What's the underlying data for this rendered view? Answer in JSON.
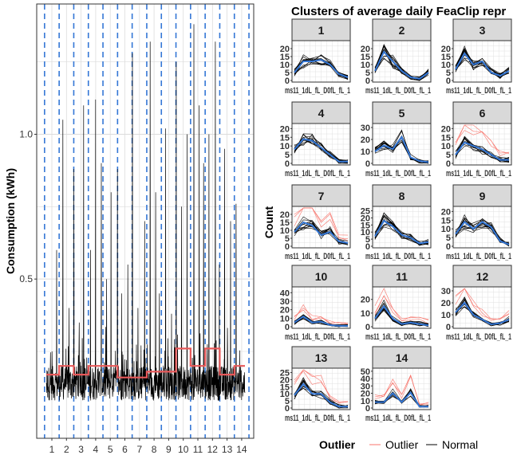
{
  "chart_data": [
    {
      "type": "line",
      "id": "consumption",
      "ylabel": "Consumption (kWh)",
      "y_ticks": [
        "0.5",
        "1.0"
      ],
      "y_tick_values": [
        0.5,
        1.0
      ],
      "ylim": [
        -0.05,
        1.45
      ],
      "x_categories": [
        "1",
        "2",
        "3",
        "4",
        "5",
        "6",
        "7",
        "8",
        "9",
        "10",
        "11",
        "12",
        "13",
        "14"
      ],
      "cluster_means": [
        0.17,
        0.2,
        0.17,
        0.2,
        0.2,
        0.16,
        0.16,
        0.18,
        0.18,
        0.26,
        0.2,
        0.26,
        0.17,
        0.2
      ],
      "spike_peaks": [
        0.25,
        0.6,
        1.05,
        0.4,
        0.88,
        0.35,
        1.1,
        0.6,
        1.12,
        0.9,
        0.5,
        0.8,
        0.88,
        0.45,
        0.55,
        1.28,
        0.4,
        0.7,
        1.32,
        0.8,
        0.45,
        1.02,
        0.38,
        1.25,
        0.75,
        1.0,
        1.38,
        1.1,
        0.9,
        1.0,
        1.32,
        0.55,
        0.95,
        0.7,
        0.76
      ],
      "series_colors": {
        "consumption": "#000000",
        "cluster_mean": "#e8595a",
        "cluster_boundary": "#3477d6"
      },
      "grid": true
    },
    {
      "type": "line",
      "id": "clusters",
      "title": "Clusters of average daily FeaClip repr",
      "ylabel": "Count",
      "x_tick_label": "ms11_1dL_fL_D0fL_fL_1",
      "panels": [
        {
          "label": "1",
          "yticks": [
            "0",
            "5",
            "10",
            "15",
            "20"
          ],
          "ymax": 24,
          "mean": [
            5,
            12,
            12,
            13,
            10,
            4,
            2
          ],
          "has_outliers": false
        },
        {
          "label": "2",
          "yticks": [
            "0",
            "5",
            "10",
            "15",
            "20"
          ],
          "ymax": 24,
          "mean": [
            6,
            18,
            12,
            6,
            2,
            1,
            5
          ],
          "has_outliers": false
        },
        {
          "label": "3",
          "yticks": [
            "0",
            "5",
            "10",
            "15",
            "20"
          ],
          "ymax": 24,
          "mean": [
            7,
            17,
            10,
            12,
            5,
            3,
            6
          ],
          "has_outliers": false
        },
        {
          "label": "4",
          "yticks": [
            "0",
            "5",
            "10",
            "15",
            "20"
          ],
          "ymax": 22,
          "mean": [
            8,
            14,
            13,
            9,
            5,
            1,
            1
          ],
          "has_outliers": false
        },
        {
          "label": "5",
          "yticks": [
            "0",
            "10",
            "20",
            "30"
          ],
          "ymax": 32,
          "mean": [
            10,
            15,
            12,
            22,
            5,
            2,
            1
          ],
          "has_outliers": false
        },
        {
          "label": "6",
          "yticks": [
            "0",
            "5",
            "10",
            "15",
            "20"
          ],
          "ymax": 22,
          "mean": [
            5,
            12,
            10,
            8,
            5,
            2,
            2
          ],
          "has_outliers": true
        },
        {
          "label": "7",
          "yticks": [
            "0",
            "5",
            "10",
            "15",
            "20"
          ],
          "ymax": 24,
          "mean": [
            9,
            15,
            13,
            7,
            9,
            3,
            2
          ],
          "has_outliers": true
        },
        {
          "label": "8",
          "yticks": [
            "0",
            "5",
            "10",
            "15",
            "20",
            "25"
          ],
          "ymax": 27,
          "mean": [
            7,
            18,
            14,
            8,
            6,
            2,
            3
          ],
          "has_outliers": false
        },
        {
          "label": "9",
          "yticks": [
            "0",
            "5",
            "10",
            "15",
            "20"
          ],
          "ymax": 22,
          "mean": [
            7,
            14,
            10,
            14,
            11,
            3,
            1
          ],
          "has_outliers": false
        },
        {
          "label": "10",
          "yticks": [
            "0",
            "10",
            "20",
            "30",
            "40"
          ],
          "ymax": 45,
          "mean": [
            5,
            12,
            5,
            6,
            2,
            1,
            1
          ],
          "has_outliers": true
        },
        {
          "label": "11",
          "yticks": [
            "0",
            "10",
            "20"
          ],
          "ymax": 28,
          "mean": [
            6,
            15,
            6,
            2,
            3,
            2,
            1
          ],
          "has_outliers": true
        },
        {
          "label": "12",
          "yticks": [
            "0",
            "10",
            "20",
            "30"
          ],
          "ymax": 32,
          "mean": [
            12,
            20,
            10,
            6,
            2,
            3,
            6
          ],
          "has_outliers": true
        },
        {
          "label": "13",
          "yticks": [
            "0",
            "5",
            "10",
            "15",
            "20",
            "25"
          ],
          "ymax": 27,
          "mean": [
            9,
            17,
            10,
            10,
            4,
            1,
            1
          ],
          "has_outliers": true
        },
        {
          "label": "14",
          "yticks": [
            "0",
            "10",
            "20",
            "30",
            "40",
            "50"
          ],
          "ymax": 52,
          "mean": [
            8,
            8,
            20,
            8,
            21,
            2,
            2
          ],
          "has_outliers": true
        }
      ],
      "legend": {
        "title": "Outlier",
        "entries": [
          {
            "label": "Outlier",
            "color": "#f8766d"
          },
          {
            "label": "Normal",
            "color": "#000000"
          }
        ]
      },
      "mean_color": "#3477d6"
    }
  ]
}
